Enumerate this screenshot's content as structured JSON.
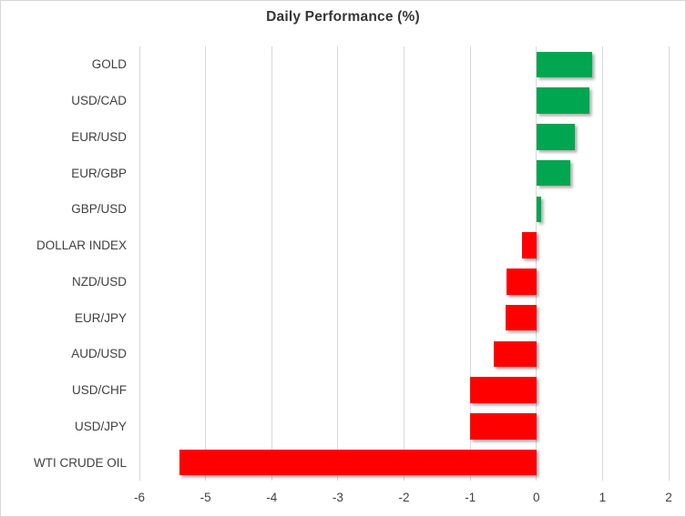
{
  "chart_data": {
    "type": "bar",
    "orientation": "horizontal",
    "title": "Daily Performance (%)",
    "categories": [
      "GOLD",
      "USD/CAD",
      "EUR/USD",
      "EUR/GBP",
      "GBP/USD",
      "DOLLAR INDEX",
      "NZD/USD",
      "EUR/JPY",
      "AUD/USD",
      "USD/CHF",
      "USD/JPY",
      "WTI CRUDE OIL"
    ],
    "values": [
      0.84,
      0.8,
      0.58,
      0.51,
      0.07,
      -0.22,
      -0.45,
      -0.46,
      -0.64,
      -1.0,
      -1.0,
      -5.39
    ],
    "xlabel": "",
    "ylabel": "",
    "xlim": [
      -6,
      2
    ],
    "x_ticks": [
      "-6",
      "-5",
      "-4",
      "-3",
      "-2",
      "-1",
      "0",
      "1",
      "2"
    ],
    "x_tick_values": [
      -6,
      -5,
      -4,
      -3,
      -2,
      -1,
      0,
      1,
      2
    ],
    "grid": "vertical",
    "legend": "none",
    "colors": {
      "positive": "#00a650",
      "negative": "#ff0000",
      "gridline": "#d9d9d9",
      "text": "#404040",
      "title_text": "#363636"
    }
  }
}
